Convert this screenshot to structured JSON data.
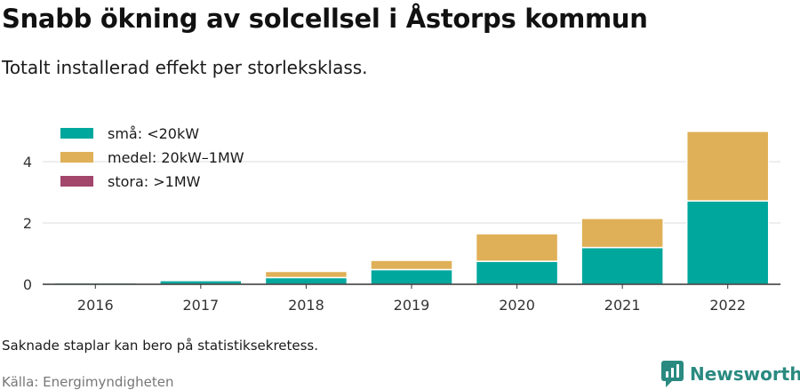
{
  "title": "Snabb ökning av solcellsel i Åstorps kommun",
  "subtitle": "Totalt installerad effekt per storleksklass.",
  "footnote": "Saknade staplar kan bero på statistiksekretess.",
  "source": "Källa: Energimyndigheten",
  "brand": "Newsworthy",
  "brand_icon": "newsworthy-logo-icon",
  "chart_data": {
    "type": "bar",
    "stacked": true,
    "categories": [
      "2016",
      "2017",
      "2018",
      "2019",
      "2020",
      "2021",
      "2022"
    ],
    "series": [
      {
        "name": "små: <20kW",
        "color": "#00a79d",
        "values": [
          0.05,
          0.12,
          0.22,
          0.48,
          0.75,
          1.2,
          2.72
        ]
      },
      {
        "name": "medel: 20kW–1MW",
        "color": "#dfb057",
        "values": [
          0.0,
          0.0,
          0.2,
          0.3,
          0.9,
          0.95,
          2.27
        ]
      },
      {
        "name": "stora: >1MW",
        "color": "#a2466b",
        "values": [
          0,
          0,
          0,
          0,
          0,
          0,
          0
        ]
      }
    ],
    "yticks": [
      0,
      2,
      4
    ],
    "ylim": [
      0,
      5.2
    ],
    "grid": true,
    "legend_position": "top-left"
  }
}
